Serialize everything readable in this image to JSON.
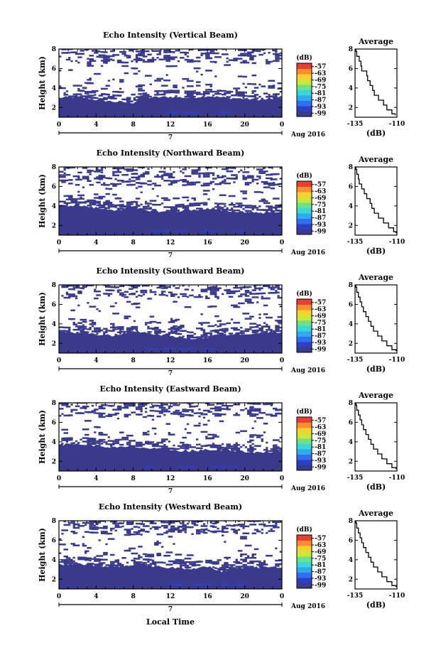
{
  "figure": {
    "xlabel": "Local Time"
  },
  "colorbar": {
    "unit": "(dB)",
    "ticks": [
      "-57",
      "-63",
      "-69",
      "-75",
      "-81",
      "-87",
      "-93",
      "-99"
    ],
    "range": [
      -102,
      -54
    ],
    "colors": [
      "#3a3a8c",
      "#2f3fc4",
      "#2f6ff0",
      "#32a8f0",
      "#38d8d8",
      "#6fe08a",
      "#c8e83a",
      "#f8d030",
      "#f89030",
      "#e84030"
    ]
  },
  "chart_data": [
    {
      "type": "heatmap",
      "title": "Echo Intensity (Vertical Beam)",
      "ylabel": "Height (km)",
      "xticks": [
        "0",
        "4",
        "8",
        "12",
        "16",
        "20",
        "0"
      ],
      "day_label": "7",
      "month_label": "Aug 2016",
      "xlim": [
        0,
        24
      ],
      "ylim": [
        1,
        8
      ],
      "yticks": [
        "2",
        "4",
        "6",
        "8"
      ],
      "background_level_db": -99,
      "boundary_km": {
        "t": [
          0,
          2,
          4,
          6,
          8,
          9,
          12,
          14,
          16,
          18,
          20,
          22,
          24
        ],
        "h": [
          3.0,
          3.1,
          2.8,
          2.6,
          2.5,
          3.0,
          3.1,
          3.0,
          3.2,
          3.0,
          2.9,
          2.8,
          3.0
        ]
      },
      "upper_noise_km": [
        6.5,
        8.0
      ],
      "profile": {
        "title": "Average",
        "xlabel": "(dB)",
        "xticks": [
          "-135",
          "-110"
        ],
        "xlim": [
          -135,
          -110
        ],
        "yticks": [
          "2",
          "4",
          "6",
          "8"
        ],
        "ylim": [
          1,
          8
        ],
        "points": [
          [
            -134.5,
            8.0
          ],
          [
            -134,
            7.5
          ],
          [
            -132.5,
            7.0
          ],
          [
            -131.5,
            6.5
          ],
          [
            -131,
            6.0
          ],
          [
            -128,
            5.5
          ],
          [
            -127.5,
            5.0
          ],
          [
            -126,
            4.5
          ],
          [
            -124.5,
            4.0
          ],
          [
            -123.5,
            3.5
          ],
          [
            -121,
            3.0
          ],
          [
            -118,
            2.5
          ],
          [
            -116,
            2.0
          ],
          [
            -113,
            1.5
          ],
          [
            -111,
            1.2
          ]
        ]
      }
    },
    {
      "type": "heatmap",
      "title": "Echo Intensity (Northward Beam)",
      "ylabel": "Height (km)",
      "xticks": [
        "0",
        "4",
        "8",
        "12",
        "16",
        "20",
        "0"
      ],
      "day_label": "7",
      "month_label": "Aug 2016",
      "xlim": [
        0,
        24
      ],
      "ylim": [
        1,
        8
      ],
      "yticks": [
        "2",
        "4",
        "6",
        "8"
      ],
      "background_level_db": -99,
      "boundary_km": {
        "t": [
          0,
          2,
          4,
          6,
          8,
          10,
          12,
          14,
          16,
          18,
          20,
          22,
          24
        ],
        "h": [
          4.0,
          4.1,
          3.8,
          3.6,
          3.8,
          3.5,
          3.4,
          3.6,
          3.7,
          3.5,
          3.4,
          3.3,
          3.5
        ]
      },
      "upper_noise_km": [
        6.0,
        8.0
      ],
      "profile": {
        "title": "Average",
        "xlabel": "(dB)",
        "xticks": [
          "-135",
          "-110"
        ],
        "xlim": [
          -135,
          -110
        ],
        "yticks": [
          "2",
          "4",
          "6",
          "8"
        ],
        "ylim": [
          1,
          8
        ],
        "points": [
          [
            -134.5,
            8.0
          ],
          [
            -134,
            7.5
          ],
          [
            -133,
            7.0
          ],
          [
            -132.5,
            6.5
          ],
          [
            -131,
            6.0
          ],
          [
            -129.5,
            5.5
          ],
          [
            -128,
            5.0
          ],
          [
            -126,
            4.5
          ],
          [
            -125,
            4.0
          ],
          [
            -123.5,
            3.5
          ],
          [
            -121,
            3.0
          ],
          [
            -118,
            2.5
          ],
          [
            -115,
            2.0
          ],
          [
            -112,
            1.5
          ],
          [
            -110.5,
            1.2
          ]
        ]
      }
    },
    {
      "type": "heatmap",
      "title": "Echo Intensity (Southward Beam)",
      "ylabel": "Height (km)",
      "xticks": [
        "0",
        "4",
        "8",
        "12",
        "16",
        "20",
        "0"
      ],
      "day_label": "7",
      "month_label": "Aug 2016",
      "xlim": [
        0,
        24
      ],
      "ylim": [
        1,
        8
      ],
      "yticks": [
        "2",
        "4",
        "6",
        "8"
      ],
      "background_level_db": -99,
      "boundary_km": {
        "t": [
          0,
          2,
          4,
          6,
          8,
          10,
          12,
          14,
          16,
          18,
          20,
          22,
          24
        ],
        "h": [
          3.2,
          3.1,
          2.9,
          2.8,
          3.3,
          3.0,
          2.8,
          2.5,
          2.6,
          2.9,
          3.0,
          3.1,
          3.2
        ]
      },
      "upper_noise_km": [
        6.5,
        8.0
      ],
      "profile": {
        "title": "Average",
        "xlabel": "(dB)",
        "xticks": [
          "-135",
          "-110"
        ],
        "xlim": [
          -135,
          -110
        ],
        "yticks": [
          "2",
          "4",
          "6",
          "8"
        ],
        "ylim": [
          1,
          8
        ],
        "points": [
          [
            -134.5,
            8.0
          ],
          [
            -134,
            7.5
          ],
          [
            -133,
            7.0
          ],
          [
            -132,
            6.5
          ],
          [
            -131,
            6.0
          ],
          [
            -130,
            5.5
          ],
          [
            -128.5,
            5.0
          ],
          [
            -127,
            4.5
          ],
          [
            -125.5,
            4.0
          ],
          [
            -124,
            3.5
          ],
          [
            -121.5,
            3.0
          ],
          [
            -119,
            2.5
          ],
          [
            -116,
            2.0
          ],
          [
            -113,
            1.5
          ],
          [
            -110.5,
            1.2
          ]
        ]
      }
    },
    {
      "type": "heatmap",
      "title": "Echo Intensity (Eastward Beam)",
      "ylabel": "Height (km)",
      "xticks": [
        "0",
        "4",
        "8",
        "12",
        "16",
        "20",
        "0"
      ],
      "day_label": "7",
      "month_label": "Aug 2016",
      "xlim": [
        0,
        24
      ],
      "ylim": [
        1,
        8
      ],
      "yticks": [
        "2",
        "4",
        "6",
        "8"
      ],
      "background_level_db": -99,
      "boundary_km": {
        "t": [
          0,
          2,
          4,
          6,
          8,
          10,
          12,
          14,
          16,
          18,
          20,
          22,
          24
        ],
        "h": [
          3.7,
          3.8,
          3.6,
          3.4,
          3.5,
          3.3,
          3.2,
          3.0,
          3.2,
          3.1,
          3.0,
          2.9,
          3.1
        ]
      },
      "upper_noise_km": [
        6.5,
        8.0
      ],
      "profile": {
        "title": "Average",
        "xlabel": "(dB)",
        "xticks": [
          "-135",
          "-110"
        ],
        "xlim": [
          -135,
          -110
        ],
        "yticks": [
          "2",
          "4",
          "6",
          "8"
        ],
        "ylim": [
          1,
          8
        ],
        "points": [
          [
            -134.5,
            8.0
          ],
          [
            -134,
            7.5
          ],
          [
            -133,
            7.0
          ],
          [
            -132,
            6.5
          ],
          [
            -131,
            6.0
          ],
          [
            -130,
            5.5
          ],
          [
            -128.5,
            5.0
          ],
          [
            -127,
            4.5
          ],
          [
            -125.5,
            4.0
          ],
          [
            -124,
            3.5
          ],
          [
            -121.5,
            3.0
          ],
          [
            -119,
            2.5
          ],
          [
            -116,
            2.0
          ],
          [
            -113,
            1.5
          ],
          [
            -110.5,
            1.2
          ]
        ]
      }
    },
    {
      "type": "heatmap",
      "title": "Echo Intensity (Westward Beam)",
      "ylabel": "Height (km)",
      "xticks": [
        "0",
        "4",
        "8",
        "12",
        "16",
        "20",
        "0"
      ],
      "day_label": "7",
      "month_label": "Aug 2016",
      "xlim": [
        0,
        24
      ],
      "ylim": [
        1,
        8
      ],
      "yticks": [
        "2",
        "4",
        "6",
        "8"
      ],
      "background_level_db": -99,
      "boundary_km": {
        "t": [
          0,
          2,
          4,
          6,
          8,
          10,
          12,
          14,
          16,
          17.5,
          19,
          21,
          24
        ],
        "h": [
          3.5,
          3.6,
          3.4,
          3.3,
          3.5,
          3.3,
          3.2,
          3.1,
          3.3,
          2.8,
          3.2,
          3.2,
          3.3
        ]
      },
      "upper_noise_km": [
        6.5,
        8.0
      ],
      "profile": {
        "title": "Average",
        "xlabel": "(dB)",
        "xticks": [
          "-135",
          "-110"
        ],
        "xlim": [
          -135,
          -110
        ],
        "yticks": [
          "2",
          "4",
          "6",
          "8"
        ],
        "ylim": [
          1,
          8
        ],
        "points": [
          [
            -134.5,
            8.0
          ],
          [
            -134,
            7.5
          ],
          [
            -133,
            7.0
          ],
          [
            -132,
            6.5
          ],
          [
            -131,
            6.0
          ],
          [
            -130,
            5.5
          ],
          [
            -128.5,
            5.0
          ],
          [
            -127,
            4.5
          ],
          [
            -125.5,
            4.0
          ],
          [
            -124,
            3.5
          ],
          [
            -121.5,
            3.0
          ],
          [
            -119,
            2.5
          ],
          [
            -116,
            2.0
          ],
          [
            -113,
            1.5
          ],
          [
            -110.5,
            1.2
          ]
        ]
      }
    }
  ]
}
